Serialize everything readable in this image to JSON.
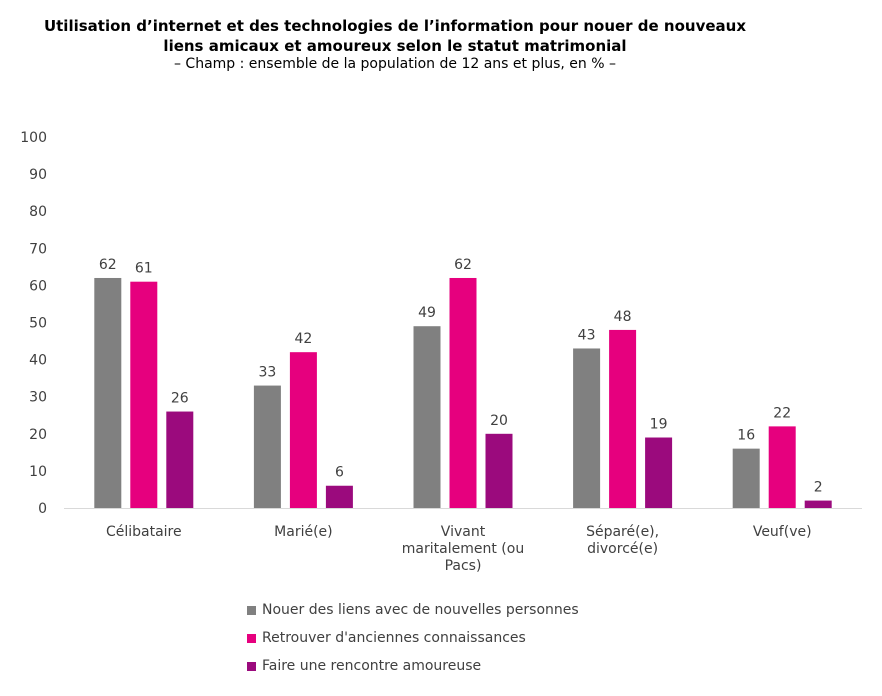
{
  "chart_data": {
    "type": "bar",
    "title": "Utilisation d’internet et des technologies de l’information pour nouer de nouveaux liens amicaux et amoureux selon le statut matrimonial",
    "title_lines": [
      "Utilisation d’internet et des technologies de l’information pour nouer de nouveaux",
      "liens amicaux et amoureux selon le statut matrimonial"
    ],
    "subtitle": "– Champ : ensemble de la population de 12 ans et plus, en % –",
    "categories": [
      [
        "Célibataire"
      ],
      [
        "Marié(e)"
      ],
      [
        "Vivant",
        "maritalement (ou",
        "Pacs)"
      ],
      [
        "Séparé(e),",
        "divorcé(e)"
      ],
      [
        "Veuf(ve)"
      ]
    ],
    "series": [
      {
        "name": "Nouer des liens avec de nouvelles personnes",
        "color": "#808080",
        "values": [
          62,
          33,
          49,
          43,
          16
        ]
      },
      {
        "name": "Retrouver d'anciennes connaissances",
        "color": "#e6007e",
        "values": [
          61,
          42,
          62,
          48,
          22
        ]
      },
      {
        "name": "Faire une rencontre amoureuse",
        "color": "#9b0a7d",
        "values": [
          26,
          6,
          20,
          19,
          2
        ]
      }
    ],
    "ylim": [
      0,
      100
    ],
    "yticks": [
      0,
      10,
      20,
      30,
      40,
      50,
      60,
      70,
      80,
      90,
      100
    ],
    "grid": false,
    "legend_position": "bottom"
  }
}
